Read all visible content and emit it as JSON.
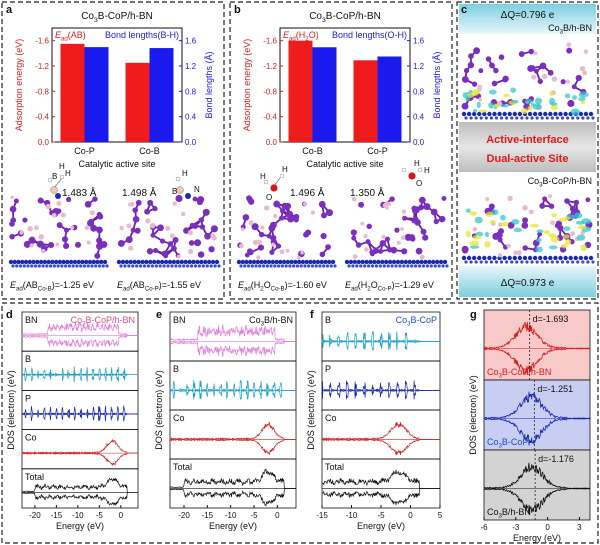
{
  "chart_data": [
    {
      "panel": "a",
      "type": "bar",
      "title": "Co3B-CoP/h-BN",
      "title_parts": [
        "Co",
        "3",
        "B-CoP/h-BN"
      ],
      "xlabel": "Catalytic active site",
      "ylabel_left": "Adsorption energy (eV)",
      "ylabel_right": "Bond lengths (Å)",
      "categories": [
        "Co-P",
        "Co-B"
      ],
      "series": [
        {
          "name": "E_ad(AB)",
          "label_main": "E",
          "label_sub": "ad",
          "label_rest": "(AB)",
          "axis": "left",
          "color": "#ee1c1c",
          "values": [
            -1.55,
            -1.25
          ]
        },
        {
          "name": "Bond lengths(B-H)",
          "axis": "right",
          "color": "#1a1aee",
          "values": [
            1.498,
            1.483
          ]
        }
      ],
      "ylim_left": [
        0.0,
        -1.8
      ],
      "yticks_left": [
        "0.0",
        "-0.4",
        "-0.8",
        "-1.2",
        "-1.6"
      ],
      "ylim_right": [
        0.0,
        1.8
      ],
      "yticks_right": [
        "0.0",
        "0.4",
        "0.8",
        "1.2",
        "1.6"
      ]
    },
    {
      "panel": "b",
      "type": "bar",
      "title": "Co3B-CoP/h-BN",
      "title_parts": [
        "Co",
        "3",
        "B-CoP/h-BN"
      ],
      "xlabel": "Catalytic active site",
      "ylabel_left": "Adsorption energy (eV)",
      "ylabel_right": "Bond lengths (Å)",
      "categories": [
        "Co-B",
        "Co-P"
      ],
      "series": [
        {
          "name": "E_ad(H2O)",
          "label_main": "E",
          "label_sub": "ad",
          "label_rest": "(H",
          "label_sub2": "2",
          "label_rest2": "O)",
          "axis": "left",
          "color": "#ee1c1c",
          "values": [
            -1.6,
            -1.29
          ]
        },
        {
          "name": "Bond lengths(O-H)",
          "axis": "right",
          "color": "#1a1aee",
          "values": [
            1.496,
            1.35
          ]
        }
      ],
      "ylim_left": [
        0.0,
        -1.8
      ],
      "yticks_left": [
        "0.0",
        "-0.4",
        "-0.8",
        "-1.2",
        "-1.6"
      ],
      "ylim_right": [
        0.0,
        1.8
      ],
      "yticks_right": [
        "0.0",
        "0.4",
        "0.8",
        "1.2",
        "1.6"
      ]
    },
    {
      "panel": "d",
      "type": "line",
      "title": "Co3B-CoP/h-BN",
      "title_parts": [
        "Co",
        "3",
        "B-CoP/h-BN"
      ],
      "title_color": "#e0488a",
      "xlabel": "Energy (eV)",
      "ylabel": "DOS (electron) (eV)",
      "xlim": [
        -23,
        4
      ],
      "xticks": [
        -20,
        -15,
        -10,
        -5,
        0
      ],
      "tracks": [
        {
          "label": "BN",
          "color": "#e27bd7",
          "style": "dense-high"
        },
        {
          "label": "B",
          "color": "#1aa0c8",
          "style": "sparse"
        },
        {
          "label": "P",
          "color": "#1a2ab0",
          "style": "sparse"
        },
        {
          "label": "Co",
          "color": "#d42020",
          "style": "dband"
        },
        {
          "label": "Total",
          "color": "#111111",
          "style": "total"
        }
      ]
    },
    {
      "panel": "e",
      "type": "line",
      "title": "Co3B/h-BN",
      "title_parts": [
        "Co",
        "3",
        "B/h-BN"
      ],
      "title_color": "#111111",
      "xlabel": "Energy (eV)",
      "ylabel": "DOS (electron) (eV)",
      "xlim": [
        -23,
        4
      ],
      "xticks": [
        -20,
        -15,
        -10,
        -5,
        0
      ],
      "tracks": [
        {
          "label": "BN",
          "color": "#e27bd7",
          "style": "dense-high"
        },
        {
          "label": "B",
          "color": "#1aa0c8",
          "style": "sparse"
        },
        {
          "label": "Co",
          "color": "#d42020",
          "style": "dband"
        },
        {
          "label": "Total",
          "color": "#111111",
          "style": "total"
        }
      ]
    },
    {
      "panel": "f",
      "type": "line",
      "title": "Co3B-CoP",
      "title_parts": [
        "Co",
        "3",
        "B-CoP"
      ],
      "title_color": "#1a50c0",
      "xlabel": "Energy (eV)",
      "ylabel": "DOS (electron) (eV)",
      "xlim": [
        -15,
        5
      ],
      "xticks": [
        -15,
        -10,
        -5,
        0,
        5
      ],
      "tracks": [
        {
          "label": "B",
          "color": "#1aa0c8",
          "style": "sparse"
        },
        {
          "label": "P",
          "color": "#1a2ab0",
          "style": "sparse"
        },
        {
          "label": "Co",
          "color": "#d42020",
          "style": "dband"
        },
        {
          "label": "Total",
          "color": "#111111",
          "style": "total"
        }
      ]
    },
    {
      "panel": "g",
      "type": "line",
      "xlabel": "Energy (eV)",
      "ylabel": "DOS (electron) (eV)",
      "xlim": [
        -6,
        4
      ],
      "xticks": [
        -6,
        -3,
        0,
        3
      ],
      "bands": [
        {
          "label_parts": [
            "Co",
            "3",
            "B-CoP/h-BN"
          ],
          "label": "Co3B-CoP/h-BN",
          "d_center": -1.693,
          "d_label": "d=-1.693",
          "color": "#d42020",
          "bg": "#f7c9c9",
          "label_color": "#d42020"
        },
        {
          "label_parts": [
            "Co",
            "3",
            "B-CoP"
          ],
          "label": "Co3B-CoP",
          "d_center": -1.251,
          "d_label": "d=-1.251",
          "color": "#1a2ab0",
          "bg": "#c8cdf2",
          "label_color": "#1a50c0"
        },
        {
          "label_parts": [
            "Co",
            "3",
            "B/h-BN"
          ],
          "label": "Co3B/h-BN",
          "d_center": -1.176,
          "d_label": "d=-1.176",
          "color": "#111111",
          "bg": "#d3d3d3",
          "label_color": "#111111"
        }
      ]
    }
  ],
  "structure_labels": {
    "a": {
      "bond1": "1.483 Å",
      "bond2": "1.498 Å",
      "eq1": {
        "pre": "E",
        "sub": "ad",
        "mid": "(AB",
        "sub2": "Co-B",
        "post": ")=-1.25 eV"
      },
      "eq2": {
        "pre": "E",
        "sub": "ad",
        "mid": "(AB",
        "sub2": "Co-P",
        "post": ")=-1.55 eV"
      },
      "atoms1": [
        "B",
        "H",
        "H"
      ],
      "atoms2": [
        "H",
        "B",
        "N"
      ]
    },
    "b": {
      "bond1": "1.496 Å",
      "bond2": "1.350 Å",
      "eq1": {
        "pre": "E",
        "sub": "ad",
        "mid": "(H",
        "sub_h2": "2",
        "mid2": "O",
        "sub2": "Co-B",
        "post": ")=-1.60 eV"
      },
      "eq2": {
        "pre": "E",
        "sub": "ad",
        "mid": "(H",
        "sub_h2": "2",
        "mid2": "O",
        "sub2": "Co-P",
        "post": ")=-1.29 eV"
      },
      "atoms1": [
        "H",
        "O",
        "H"
      ],
      "atoms2": [
        "H",
        "O",
        "H"
      ]
    }
  },
  "panel_c": {
    "top_charge": "ΔQ=0.796 e",
    "top_label_parts": [
      "Co",
      "3",
      "B/h-BN"
    ],
    "middle_line1": "Active-interface",
    "middle_line2": "Dual-active Site",
    "bottom_label_parts": [
      "Co",
      "3",
      "B-CoP/h-BN"
    ],
    "bottom_charge": "ΔQ=0.973 e"
  },
  "panel_letters": [
    "a",
    "b",
    "c",
    "d",
    "e",
    "f",
    "g"
  ],
  "colors": {
    "red": "#ee1c1c",
    "blue": "#1a1aee",
    "purple": "#7b2fbf",
    "lightpink": "#e8b9cf",
    "navy": "#1a2ab0",
    "teal_bg": "#9fd9e6"
  }
}
